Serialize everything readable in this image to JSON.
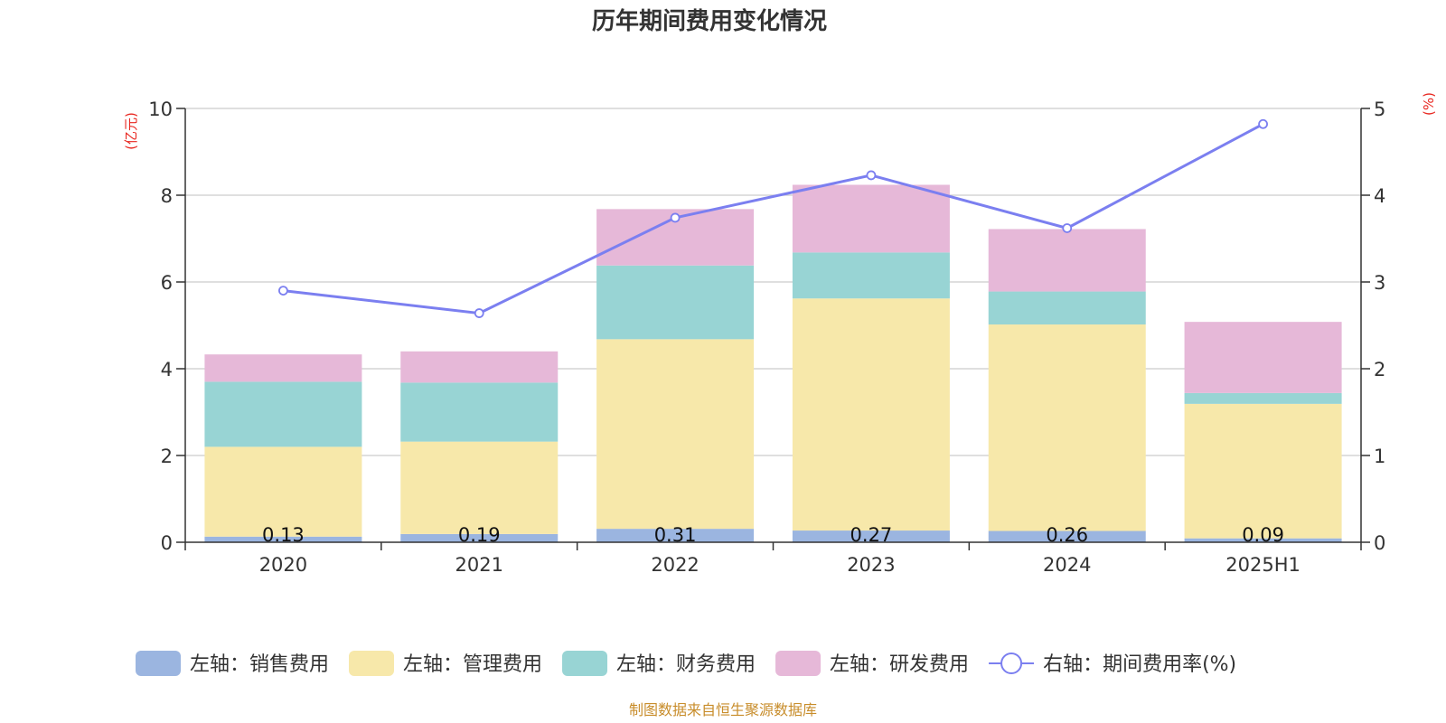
{
  "chart_data": {
    "type": "bar",
    "stacked": true,
    "title": "历年期间费用变化情况",
    "left_axis_unit": "(亿元)",
    "right_axis_unit": "(%)",
    "categories": [
      "2020",
      "2021",
      "2022",
      "2023",
      "2024",
      "2025H1"
    ],
    "ylim_left": [
      0,
      10
    ],
    "yticks_left": [
      "0",
      "2",
      "4",
      "6",
      "8",
      "10"
    ],
    "ylim_right": [
      0,
      5
    ],
    "yticks_right": [
      "0",
      "1",
      "2",
      "3",
      "4",
      "5"
    ],
    "grid": true,
    "legend_position": "bottom",
    "series": [
      {
        "name": "左轴：销售费用",
        "axis": "left",
        "type": "bar",
        "color": "#9bb5e0",
        "values": [
          0.13,
          0.19,
          0.31,
          0.27,
          0.26,
          0.09
        ],
        "labels": [
          "0.13",
          "0.19",
          "0.31",
          "0.27",
          "0.26",
          "0.09"
        ]
      },
      {
        "name": "左轴：管理费用",
        "axis": "left",
        "type": "bar",
        "color": "#f7e8aa",
        "values": [
          2.07,
          2.13,
          4.37,
          5.35,
          4.76,
          3.1
        ]
      },
      {
        "name": "左轴：财务费用",
        "axis": "left",
        "type": "bar",
        "color": "#98d4d4",
        "values": [
          1.5,
          1.36,
          1.7,
          1.06,
          0.76,
          0.25
        ]
      },
      {
        "name": "左轴：研发费用",
        "axis": "left",
        "type": "bar",
        "color": "#e6b8d8",
        "values": [
          0.63,
          0.72,
          1.3,
          1.56,
          1.44,
          1.64
        ]
      },
      {
        "name": "右轴：期间费用率(%)",
        "axis": "right",
        "type": "line",
        "color": "#7b7ff0",
        "values": [
          2.9,
          2.64,
          3.74,
          4.23,
          3.62,
          4.82
        ]
      }
    ],
    "source": "制图数据来自恒生聚源数据库",
    "colors": {
      "unit": "#e8261f",
      "source": "#c88d2b",
      "grid": "#cccccc",
      "axis": "#333333"
    }
  }
}
